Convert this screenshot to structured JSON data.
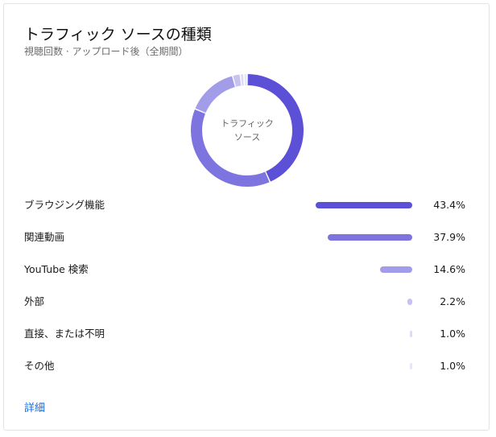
{
  "card": {
    "title": "トラフィック ソースの種類",
    "subtitle": "視聴回数 · アップロード後（全期間）",
    "donut_center_label": "トラフィック ソース",
    "more_link": "詳細"
  },
  "colors": {
    "accent": "#5b50d6"
  },
  "chart_data": {
    "type": "pie",
    "title": "トラフィック ソースの種類",
    "subtitle": "視聴回数 · アップロード後（全期間）",
    "center_label": "トラフィック ソース",
    "legend_position": "below",
    "slices": [
      {
        "label": "ブラウジング機能",
        "value": 43.4,
        "value_label": "43.4%",
        "color": "#5b50d6"
      },
      {
        "label": "関連動画",
        "value": 37.9,
        "value_label": "37.9%",
        "color": "#7d74df"
      },
      {
        "label": "YouTube 検索",
        "value": 14.6,
        "value_label": "14.6%",
        "color": "#a39ce8"
      },
      {
        "label": "外部",
        "value": 2.2,
        "value_label": "2.2%",
        "color": "#c7c3f1"
      },
      {
        "label": "直接、または不明",
        "value": 1.0,
        "value_label": "1.0%",
        "color": "#dcdaf6"
      },
      {
        "label": "その他",
        "value": 1.0,
        "value_label": "1.0%",
        "color": "#e7e6f9"
      }
    ]
  }
}
